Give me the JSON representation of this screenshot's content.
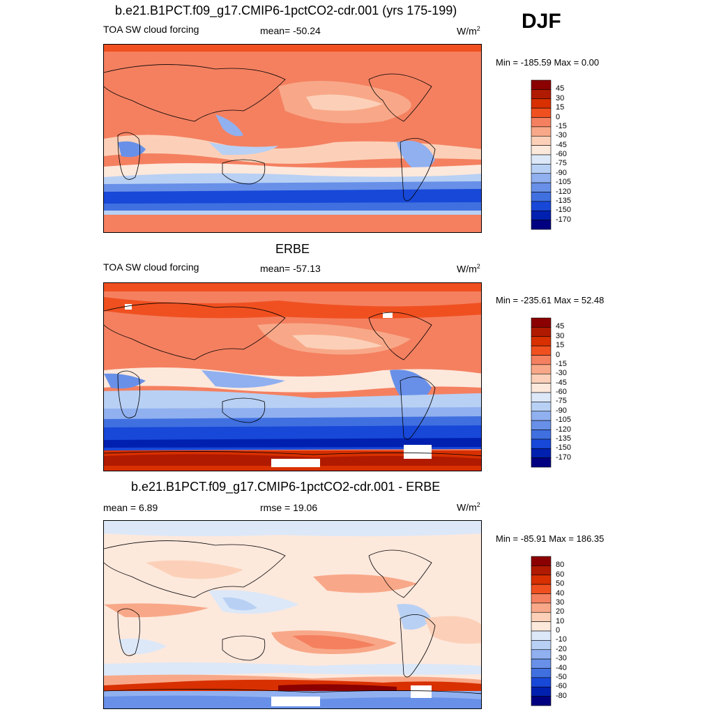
{
  "season": "DJF",
  "panels": [
    {
      "title": "b.e21.B1PCT.f09_g17.CMIP6-1pctCO2-cdr.001 (yrs 175-199)",
      "left_label": "TOA SW cloud forcing",
      "center_label": "mean= -50.24",
      "units": "W/m",
      "units_sup": "2",
      "minmax": "Min = -185.59 Max =    0.00",
      "colorbar_labels": [
        "45",
        "30",
        "15",
        "0",
        "-15",
        "-30",
        "-45",
        "-60",
        "-75",
        "-90",
        "-105",
        "-120",
        "-135",
        "-150",
        "-170"
      ]
    },
    {
      "title": "ERBE",
      "left_label": "TOA SW cloud forcing",
      "center_label": "mean= -57.13",
      "units": "W/m",
      "units_sup": "2",
      "minmax": "Min = -235.61 Max =  52.48",
      "colorbar_labels": [
        "45",
        "30",
        "15",
        "0",
        "-15",
        "-30",
        "-45",
        "-60",
        "-75",
        "-90",
        "-105",
        "-120",
        "-135",
        "-150",
        "-170"
      ]
    },
    {
      "title": "b.e21.B1PCT.f09_g17.CMIP6-1pctCO2-cdr.001 - ERBE",
      "left_label": "mean =   6.89",
      "center_label": "rmse =  19.06",
      "units": "W/m",
      "units_sup": "2",
      "minmax": "Min = -85.91 Max = 186.35",
      "colorbar_labels": [
        "80",
        "60",
        "50",
        "40",
        "30",
        "20",
        "10",
        "0",
        "-10",
        "-20",
        "-30",
        "-40",
        "-50",
        "-60",
        "-80"
      ]
    }
  ],
  "colors": {
    "forcing_scale": [
      "#8b0000",
      "#b01a00",
      "#d83000",
      "#f05020",
      "#f48060",
      "#f8a888",
      "#fcd0b8",
      "#fde8dc",
      "#dce8f8",
      "#b8d0f4",
      "#90b0f0",
      "#6890e8",
      "#4070e0",
      "#1848d8",
      "#0020b0",
      "#000080"
    ],
    "diff_scale": [
      "#8b0000",
      "#b01a00",
      "#d83000",
      "#f05020",
      "#f48060",
      "#f8a888",
      "#fcd0b8",
      "#fde8dc",
      "#dce8f8",
      "#b8d0f4",
      "#90b0f0",
      "#6890e8",
      "#4070e0",
      "#1848d8",
      "#0020b0",
      "#000080"
    ]
  },
  "chart_data": [
    {
      "type": "heatmap",
      "title": "b.e21.B1PCT.f09_g17.CMIP6-1pctCO2-cdr.001 (yrs 175-199)",
      "variable": "TOA SW cloud forcing",
      "units": "W/m2",
      "mean": -50.24,
      "min": -185.59,
      "max": 0.0,
      "levels": [
        45,
        30,
        15,
        0,
        -15,
        -30,
        -45,
        -60,
        -75,
        -90,
        -105,
        -120,
        -135,
        -150,
        -170
      ],
      "season": "DJF"
    },
    {
      "type": "heatmap",
      "title": "ERBE",
      "variable": "TOA SW cloud forcing",
      "units": "W/m2",
      "mean": -57.13,
      "min": -235.61,
      "max": 52.48,
      "levels": [
        45,
        30,
        15,
        0,
        -15,
        -30,
        -45,
        -60,
        -75,
        -90,
        -105,
        -120,
        -135,
        -150,
        -170
      ],
      "season": "DJF"
    },
    {
      "type": "heatmap",
      "title": "b.e21.B1PCT.f09_g17.CMIP6-1pctCO2-cdr.001 - ERBE",
      "units": "W/m2",
      "mean": 6.89,
      "rmse": 19.06,
      "min": -85.91,
      "max": 186.35,
      "levels": [
        80,
        60,
        50,
        40,
        30,
        20,
        10,
        0,
        -10,
        -20,
        -30,
        -40,
        -50,
        -60,
        -80
      ],
      "season": "DJF"
    }
  ]
}
